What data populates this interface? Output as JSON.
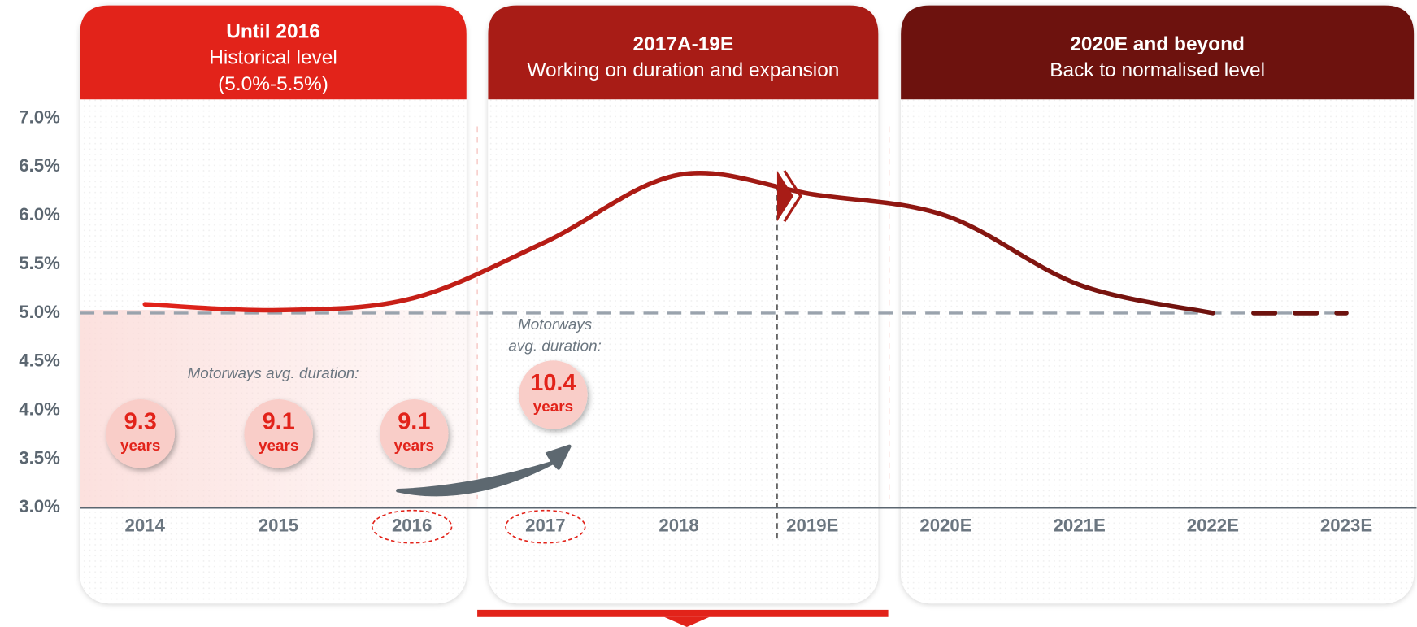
{
  "chart_data": {
    "type": "line",
    "panels": [
      {
        "title": "Until 2016",
        "subtitle": "Historical level",
        "note": "(5.0%-5.5%)",
        "color": "#e2231a"
      },
      {
        "title": "2017A-19E",
        "subtitle": "Working on duration and expansion",
        "color": "#a81c16"
      },
      {
        "title": "2020E and beyond",
        "subtitle": "Back to normalised level",
        "color": "#6d120e"
      }
    ],
    "categories": [
      "2014",
      "2015",
      "2016",
      "2017",
      "2018",
      "2019E",
      "2020E",
      "2021E",
      "2022E",
      "2023E"
    ],
    "values": [
      5.09,
      5.03,
      5.15,
      5.73,
      6.42,
      6.22,
      6.0,
      5.29,
      5.0,
      5.0
    ],
    "line_colors": [
      "#e2231a",
      "#6d120e"
    ],
    "reference_line": 5.0,
    "ylim": [
      3,
      7
    ],
    "yticks": [
      {
        "value": 3,
        "label": "3.0%"
      },
      {
        "value": 3.5,
        "label": "3.5%"
      },
      {
        "value": 4,
        "label": "4.0%"
      },
      {
        "value": 4.5,
        "label": "4.5%"
      },
      {
        "value": 5,
        "label": "5.0%"
      },
      {
        "value": 5.5,
        "label": "5.5%"
      },
      {
        "value": 6,
        "label": "6.0%"
      },
      {
        "value": 6.5,
        "label": "6.5%"
      },
      {
        "value": 7,
        "label": "7.0%"
      }
    ],
    "duration_label": "Motorways avg. duration:",
    "duration_label_2017": [
      "Motorways",
      "avg. duration:"
    ],
    "durations": [
      {
        "value": "9.3",
        "unit": "years"
      },
      {
        "value": "9.1",
        "unit": "years"
      },
      {
        "value": "9.1",
        "unit": "years"
      },
      {
        "value": "10.4",
        "unit": "years"
      }
    ]
  }
}
